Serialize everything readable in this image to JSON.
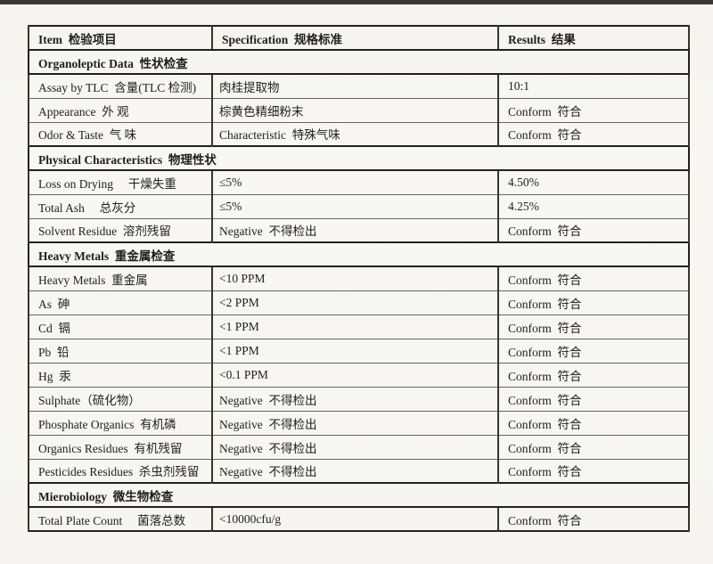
{
  "page": {
    "paper_color": "#f7f6f2",
    "ink_color": "#201e1a",
    "top_band_color": "#3b3833"
  },
  "table": {
    "headers": [
      "Item  检验项目",
      "Specification  规格标准",
      "Results  结果"
    ],
    "rows": [
      {
        "type": "section",
        "label": "Organoleptic Data  性状检查"
      },
      {
        "type": "data",
        "item": "Assay by TLC  含量(TLC 检测)",
        "spec": "肉桂提取物",
        "result": "10:1"
      },
      {
        "type": "data",
        "item": "Appearance  外 观",
        "spec": "棕黄色精细粉末",
        "result": "Conform  符合"
      },
      {
        "type": "data",
        "item": "Odor & Taste  气 味",
        "spec": "Characteristic  特殊气味",
        "result": "Conform  符合"
      },
      {
        "type": "section",
        "label": "Physical Characteristics  物理性状"
      },
      {
        "type": "data",
        "item": "Loss on Drying　 干燥失重",
        "spec": "≤5%",
        "result": "4.50%"
      },
      {
        "type": "data",
        "item": "Total Ash　 总灰分",
        "spec": "≤5%",
        "result": "4.25%"
      },
      {
        "type": "data",
        "item": "Solvent Residue  溶剂残留",
        "spec": "Negative  不得检出",
        "result": "Conform  符合"
      },
      {
        "type": "section",
        "label": "Heavy Metals  重金属检查"
      },
      {
        "type": "data",
        "item": "Heavy Metals  重金属",
        "spec": "<10 PPM",
        "result": "Conform  符合"
      },
      {
        "type": "data",
        "item": "As  砷",
        "spec": "<2 PPM",
        "result": "Conform  符合"
      },
      {
        "type": "data",
        "item": "Cd  镉",
        "spec": "<1 PPM",
        "result": "Conform  符合"
      },
      {
        "type": "data",
        "item": "Pb  铅",
        "spec": "<1 PPM",
        "result": "Conform  符合"
      },
      {
        "type": "data",
        "item": "Hg  汞",
        "spec": "<0.1 PPM",
        "result": "Conform  符合"
      },
      {
        "type": "data",
        "item": "Sulphate（硫化物）",
        "spec": "Negative  不得检出",
        "result": "Conform  符合"
      },
      {
        "type": "data",
        "item": "Phosphate Organics  有机磷",
        "spec": "Negative  不得检出",
        "result": "Conform  符合"
      },
      {
        "type": "data",
        "item": "Organics Residues  有机残留",
        "spec": "Negative  不得检出",
        "result": "Conform  符合"
      },
      {
        "type": "data",
        "item": "Pesticides Residues  杀虫剂残留",
        "spec": "Negative  不得检出",
        "result": "Conform  符合"
      },
      {
        "type": "section",
        "label": "Mierobiology  微生物检查"
      },
      {
        "type": "data",
        "item": "Total Plate Count　 菌落总数",
        "spec": "<10000cfu/g",
        "result": "Conform  符合"
      }
    ]
  }
}
